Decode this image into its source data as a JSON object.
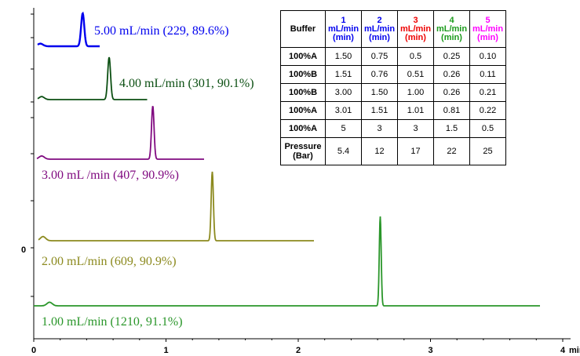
{
  "chart_data": {
    "type": "line",
    "x_axis": {
      "min": 0,
      "max": 4,
      "tick_labels": [
        "0",
        "1",
        "2",
        "3",
        "4"
      ],
      "unit": "min"
    },
    "y_axis": {
      "tick_labels": [
        "0"
      ]
    },
    "series": [
      {
        "name": "5.00 mL/min (229, 89.6%)",
        "color": "#0000ee",
        "x_end": 0.5,
        "peaks": [
          [
            0.05,
            0.08
          ],
          [
            0.37,
            1.0
          ]
        ]
      },
      {
        "name": "4.00 mL/min (301, 90.1%)",
        "color": "#0b4f12",
        "x_end": 0.86,
        "peaks": [
          [
            0.06,
            0.07
          ],
          [
            0.57,
            1.0
          ]
        ]
      },
      {
        "name": "3.00 mL /min (407, 90.9%)",
        "color": "#800a80",
        "x_end": 1.29,
        "peaks": [
          [
            0.06,
            0.06
          ],
          [
            0.9,
            1.0
          ]
        ]
      },
      {
        "name": "2.00 mL/min (609, 90.9%)",
        "color": "#8c8a1f",
        "x_end": 2.12,
        "peaks": [
          [
            0.07,
            0.06
          ],
          [
            1.35,
            1.0
          ]
        ]
      },
      {
        "name": "1.00 mL/min (1210, 91.1%)",
        "color": "#2a962a",
        "x_end": 3.83,
        "peaks": [
          [
            0.12,
            0.04
          ],
          [
            2.62,
            1.0
          ]
        ]
      }
    ]
  },
  "table": {
    "header": [
      {
        "num": "",
        "label": "Buffer",
        "color": "#000000"
      },
      {
        "num": "1",
        "label": "mL/min (min)",
        "color": "#0000ee"
      },
      {
        "num": "2",
        "label": "mL/min (min)",
        "color": "#0000ee"
      },
      {
        "num": "3",
        "label": "mL/min (min)",
        "color": "#ee0000"
      },
      {
        "num": "4",
        "label": "mL/min (min)",
        "color": "#1a9a1a"
      },
      {
        "num": "5",
        "label": "mL/min (min)",
        "color": "#ff00ff"
      }
    ],
    "rows": [
      [
        "100%A",
        "1.50",
        "0.75",
        "0.5",
        "0.25",
        "0.10"
      ],
      [
        "100%B",
        "1.51",
        "0.76",
        "0.51",
        "0.26",
        "0.11"
      ],
      [
        "100%B",
        "3.00",
        "1.50",
        "1.00",
        "0.26",
        "0.21"
      ],
      [
        "100%A",
        "3.01",
        "1.51",
        "1.01",
        "0.81",
        "0.22"
      ],
      [
        "100%A",
        "5",
        "3",
        "3",
        "1.5",
        "0.5"
      ],
      [
        "Pressure (Bar)",
        "5.4",
        "12",
        "17",
        "22",
        "25"
      ]
    ]
  }
}
